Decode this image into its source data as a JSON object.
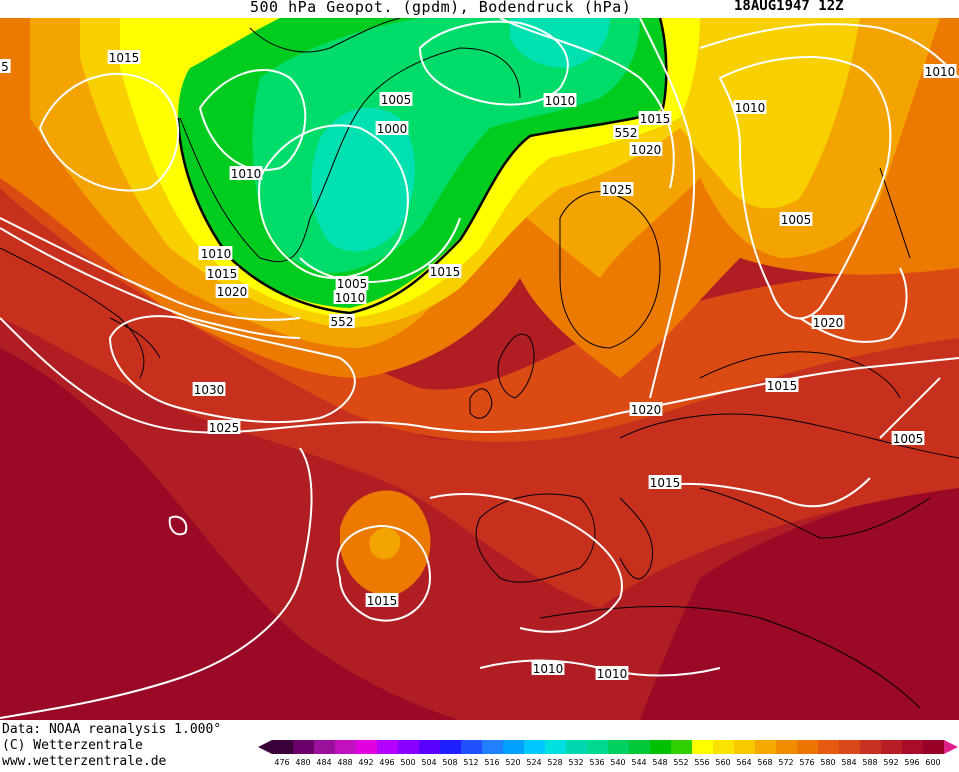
{
  "title": {
    "main": "500 hPa Geopot. (gpdm), Bodendruck (hPa)",
    "date": "18AUG1947  12Z"
  },
  "footer": {
    "line1": "Data: NOAA reanalysis 1.000°",
    "line2": "(C) Wetterzentrale",
    "line3": "www.wetterzentrale.de"
  },
  "scale": {
    "ticks": [
      "476",
      "480",
      "484",
      "488",
      "492",
      "496",
      "500",
      "504",
      "508",
      "512",
      "516",
      "520",
      "524",
      "528",
      "532",
      "536",
      "540",
      "544",
      "548",
      "552",
      "556",
      "560",
      "564",
      "568",
      "572",
      "576",
      "580",
      "584",
      "588",
      "592",
      "596",
      "600"
    ],
    "colors": [
      "#3a003a",
      "#6a006a",
      "#9a109a",
      "#c010c0",
      "#e000e0",
      "#b400ff",
      "#8a00ff",
      "#5a00ff",
      "#2020ff",
      "#2050ff",
      "#2080ff",
      "#00a0ff",
      "#00c8ff",
      "#00e0e0",
      "#00d8b0",
      "#00d890",
      "#00d060",
      "#00c838",
      "#00c000",
      "#30d000",
      "#ffff00",
      "#f8e400",
      "#f8c800",
      "#f4a800",
      "#f08c00",
      "#ec7400",
      "#e45a10",
      "#d84818",
      "#c83020",
      "#b81c24",
      "#a80c28",
      "#980028"
    ]
  },
  "map": {
    "colors": {
      "z600": "#9a0a26",
      "z592": "#b01e24",
      "z584": "#c8301e",
      "z576": "#dc4a14",
      "z568": "#ec7a00",
      "z560": "#f4a400",
      "z556": "#f8d000",
      "z552": "#ffff00",
      "z548": "#00cc20",
      "z540": "#00dc6a",
      "z532": "#00e0b0"
    },
    "contour_552_label": "552",
    "labels": [
      {
        "text": "1015"
      },
      {
        "text": "1010"
      },
      {
        "text": "1005"
      },
      {
        "text": "1000"
      },
      {
        "text": "1010"
      },
      {
        "text": "552"
      },
      {
        "text": "1015"
      },
      {
        "text": "1020"
      },
      {
        "text": "1025"
      },
      {
        "text": "1010"
      },
      {
        "text": "1010"
      },
      {
        "text": "1005"
      },
      {
        "text": "1010"
      },
      {
        "text": "1015"
      },
      {
        "text": "1020"
      },
      {
        "text": "1005"
      },
      {
        "text": "1010"
      },
      {
        "text": "1015"
      },
      {
        "text": "1020"
      },
      {
        "text": "552"
      },
      {
        "text": "1030"
      },
      {
        "text": "1025"
      },
      {
        "text": "1015"
      },
      {
        "text": "1015"
      },
      {
        "text": "1010"
      },
      {
        "text": "1010"
      },
      {
        "text": "1015"
      },
      {
        "text": "1020"
      },
      {
        "text": "1010"
      },
      {
        "text": "1005"
      },
      {
        "text": "1015"
      },
      {
        "text": "1010"
      },
      {
        "text": "5"
      }
    ]
  }
}
